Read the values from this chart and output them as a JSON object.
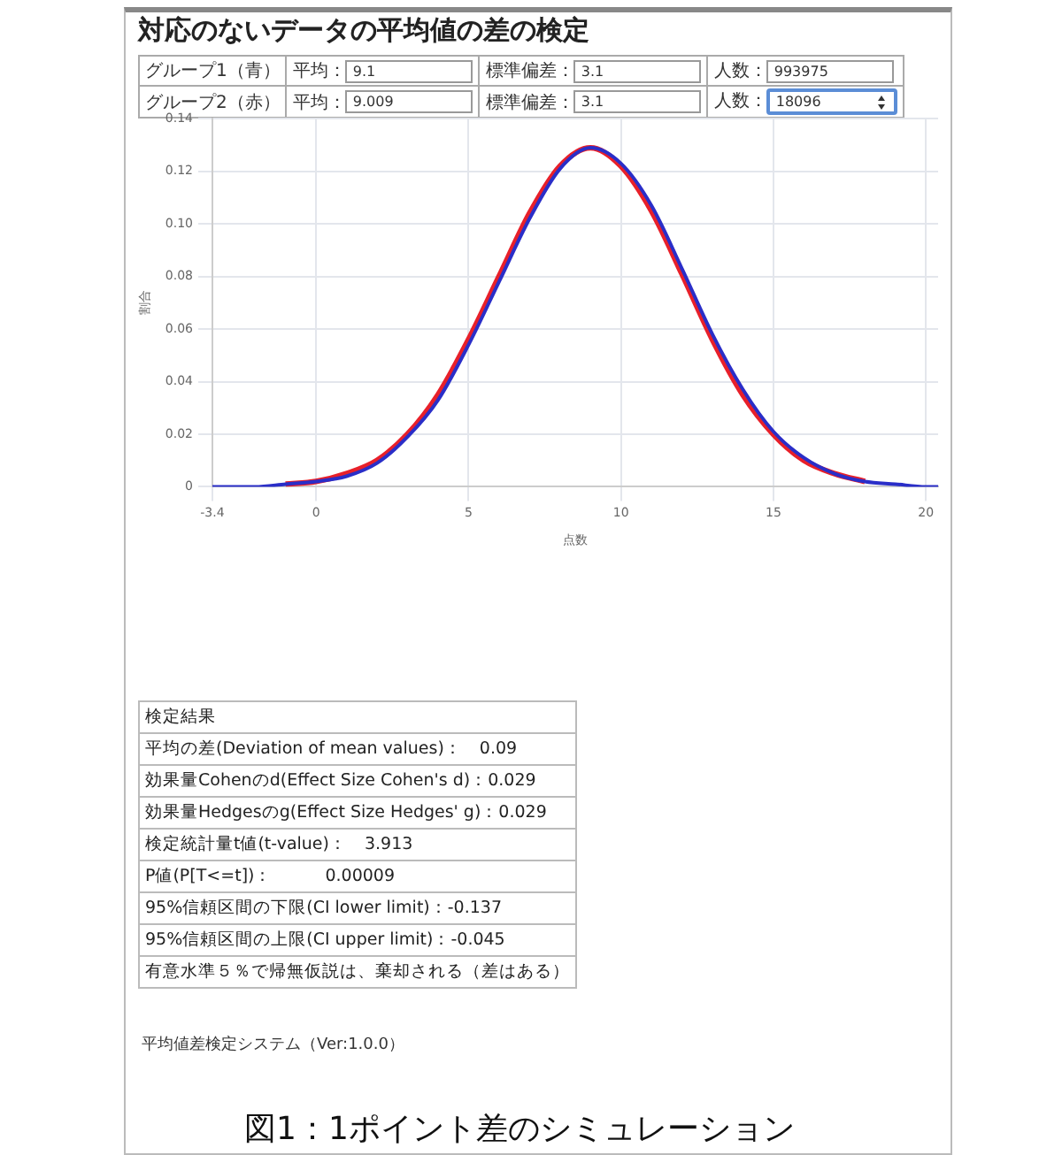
{
  "chart_data": {
    "type": "line",
    "title": "対応のないデータの平均値の差の検定",
    "xlabel": "点数",
    "ylabel": "割合",
    "xlim": [
      -3.4,
      20.4
    ],
    "xticks": [
      -3.4,
      0,
      5,
      10,
      15,
      20
    ],
    "ylim": [
      0,
      0.14
    ],
    "yticks": [
      0,
      0.02,
      0.04,
      0.06,
      0.08,
      {
        "value": 0.1,
        "label": "0.10"
      },
      0.12,
      0.14
    ],
    "grid": true,
    "legend": false,
    "marker": "none",
    "line_style": "solid",
    "x": [
      -3.4,
      -2,
      -1,
      0,
      1,
      2,
      3,
      4,
      5,
      6,
      7,
      8,
      9,
      10,
      11,
      12,
      13,
      14,
      15,
      16,
      17,
      18,
      19,
      20,
      20.4
    ],
    "series": [
      {
        "color": "#2a2ec8",
        "values": [
          0.0,
          0.0,
          0.001,
          0.002,
          0.004,
          0.009,
          0.019,
          0.033,
          0.054,
          0.078,
          0.102,
          0.121,
          0.129,
          0.123,
          0.107,
          0.083,
          0.058,
          0.037,
          0.021,
          0.011,
          0.005,
          0.002,
          0.001,
          0.0,
          0.0
        ]
      },
      {
        "color": "#e8202a",
        "values": [
          null,
          null,
          0.001,
          0.002,
          0.005,
          0.01,
          0.02,
          0.035,
          0.056,
          0.08,
          0.104,
          0.122,
          0.129,
          0.122,
          0.105,
          0.081,
          0.056,
          0.035,
          0.02,
          0.01,
          0.005,
          0.002,
          null,
          null,
          null
        ]
      }
    ],
    "annotations": [
      "グループ1（青）",
      "平均：",
      "9.1",
      "標準偏差：",
      "3.1",
      "人数：",
      "993975",
      "グループ2（赤）",
      "平均：",
      "9.009",
      "標準偏差：",
      "3.1",
      "人数：",
      "18096",
      "検定結果",
      "平均の差(Deviation of mean values)：　0.09",
      "効果量Cohenのd(Effect Size Cohen's d)：0.029",
      "効果量Hedgesのg(Effect Size Hedges' g)：0.029",
      "検定統計量t値(t-value)：　3.913",
      "P値(P[T<=t])：　　　0.00009",
      "95%信頼区間の下限(CI lower limit)：-0.137",
      "95%信頼区間の上限(CI upper limit)：-0.045",
      "有意水準５％で帰無仮説は、棄却される（差はある）",
      "平均値差検定システム（Ver:1.0.0）",
      "図1：1ポイント差のシミュレーション"
    ]
  }
}
